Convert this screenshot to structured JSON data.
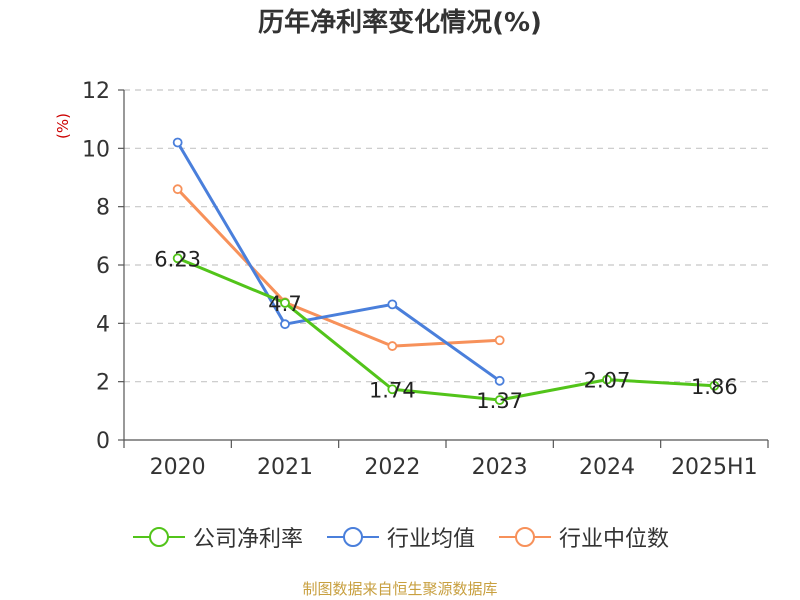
{
  "title": "历年净利率变化情况(%)",
  "source": "制图数据来自恒生聚源数据库",
  "chart_data": {
    "type": "line",
    "title": "历年净利率变化情况(%)",
    "ylabel": "(%)",
    "xlabel": "",
    "categories": [
      "2020",
      "2021",
      "2022",
      "2023",
      "2024",
      "2025H1"
    ],
    "ylim": [
      0,
      12
    ],
    "yticks": [
      0,
      2,
      4,
      6,
      8,
      10,
      12
    ],
    "grid": true,
    "legend_position": "bottom",
    "series": [
      {
        "name": "公司净利率",
        "color": "#52c41a",
        "values": [
          6.23,
          4.7,
          1.74,
          1.37,
          2.07,
          1.86
        ],
        "labels": [
          "6.23",
          "4.7",
          "1.74",
          "1.37",
          "2.07",
          "1.86"
        ]
      },
      {
        "name": "行业均值",
        "color": "#4a7fdb",
        "values": [
          10.2,
          3.97,
          4.65,
          2.03,
          null,
          null
        ]
      },
      {
        "name": "行业中位数",
        "color": "#f7915a",
        "values": [
          8.6,
          4.72,
          3.22,
          3.42,
          null,
          null
        ]
      }
    ]
  }
}
